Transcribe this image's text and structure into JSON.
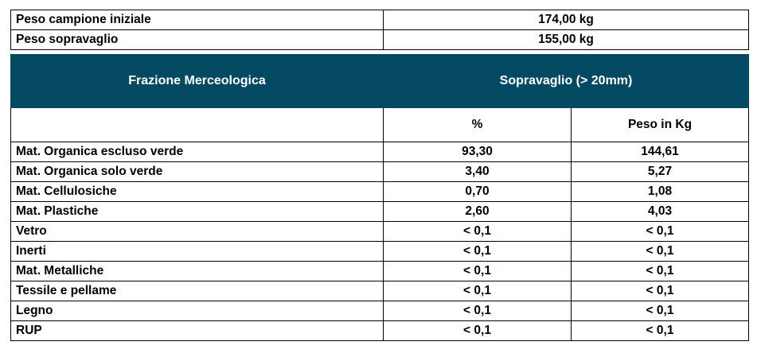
{
  "summary": [
    {
      "label": "Peso campione iniziale",
      "value": "174,00 kg"
    },
    {
      "label": "Peso sopravaglio",
      "value": "155,00 kg"
    }
  ],
  "header": {
    "fraction_label": "Frazione Merceologica",
    "group_label": "Sopravaglio (> 20mm)",
    "col_percent": "%",
    "col_weight": "Peso in Kg"
  },
  "rows": [
    {
      "name": "Mat. Organica escluso verde",
      "percent": "93,30",
      "weight": "144,61"
    },
    {
      "name": "Mat. Organica solo verde",
      "percent": "3,40",
      "weight": "5,27"
    },
    {
      "name": "Mat. Cellulosiche",
      "percent": "0,70",
      "weight": "1,08"
    },
    {
      "name": "Mat. Plastiche",
      "percent": "2,60",
      "weight": "4,03"
    },
    {
      "name": "Vetro",
      "percent": "< 0,1",
      "weight": "< 0,1"
    },
    {
      "name": "Inerti",
      "percent": "< 0,1",
      "weight": "< 0,1"
    },
    {
      "name": "Mat. Metalliche",
      "percent": "< 0,1",
      "weight": "< 0,1"
    },
    {
      "name": "Tessile e pellame",
      "percent": "< 0,1",
      "weight": "< 0,1"
    },
    {
      "name": "Legno",
      "percent": "< 0,1",
      "weight": "< 0,1"
    },
    {
      "name": "RUP",
      "percent": "< 0,1",
      "weight": "< 0,1"
    }
  ],
  "colors": {
    "header_background": "#034961",
    "header_text": "#ffffff"
  }
}
